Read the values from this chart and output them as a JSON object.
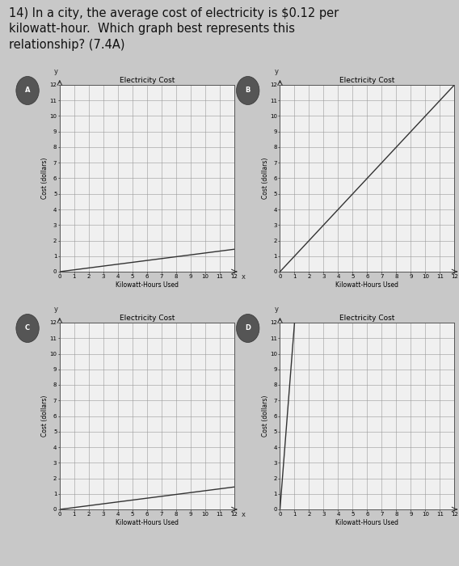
{
  "title_line1": "14) In a city, the average cost of electricity is $0.12 per",
  "title_line2": "kilowatt-hour.  Which graph best represents this",
  "title_line3": "relationship? (7.4A)",
  "title_fontsize": 10.5,
  "background_color": "#c8c8c8",
  "graphs": [
    {
      "label": "A",
      "chart_title": "Electricity Cost",
      "xlabel": "Kilowatt-Hours Used",
      "ylabel": "Cost (dollars)",
      "xlim": [
        0,
        12
      ],
      "ylim": [
        0,
        12
      ],
      "xticks": [
        0,
        1,
        2,
        3,
        4,
        5,
        6,
        7,
        8,
        9,
        10,
        11,
        12
      ],
      "yticks": [
        0,
        1,
        2,
        3,
        4,
        5,
        6,
        7,
        8,
        9,
        10,
        11,
        12
      ],
      "slope": 0.12,
      "intercept": 0
    },
    {
      "label": "B",
      "chart_title": "Electricity Cost",
      "xlabel": "Kilowatt-Hours Used",
      "ylabel": "Cost (dollars)",
      "xlim": [
        0,
        12
      ],
      "ylim": [
        0,
        12
      ],
      "xticks": [
        0,
        1,
        2,
        3,
        4,
        5,
        6,
        7,
        8,
        9,
        10,
        11,
        12
      ],
      "yticks": [
        0,
        1,
        2,
        3,
        4,
        5,
        6,
        7,
        8,
        9,
        10,
        11,
        12
      ],
      "slope": 1.0,
      "intercept": 0
    },
    {
      "label": "C",
      "chart_title": "Electricity Cost",
      "xlabel": "Kilowatt-Hours Used",
      "ylabel": "Cost (dollars)",
      "xlim": [
        0,
        12
      ],
      "ylim": [
        0,
        12
      ],
      "xticks": [
        0,
        1,
        2,
        3,
        4,
        5,
        6,
        7,
        8,
        9,
        10,
        11,
        12
      ],
      "yticks": [
        0,
        1,
        2,
        3,
        4,
        5,
        6,
        7,
        8,
        9,
        10,
        11,
        12
      ],
      "slope": 0.12,
      "intercept": 0
    },
    {
      "label": "D",
      "chart_title": "Electricity Cost",
      "xlabel": "Kilowatt-Hours Used",
      "ylabel": "Cost (dollars)",
      "xlim": [
        0,
        12
      ],
      "ylim": [
        0,
        12
      ],
      "xticks": [
        0,
        1,
        2,
        3,
        4,
        5,
        6,
        7,
        8,
        9,
        10,
        11,
        12
      ],
      "yticks": [
        0,
        1,
        2,
        3,
        4,
        5,
        6,
        7,
        8,
        9,
        10,
        11,
        12
      ],
      "slope": 12.0,
      "intercept": 0
    }
  ],
  "line_color": "#333333",
  "grid_color": "#999999",
  "panel_bg": "#f0f0f0",
  "tick_fontsize": 5,
  "axis_label_fontsize": 5.5,
  "chart_title_fontsize": 6.5,
  "title_color": "#111111"
}
